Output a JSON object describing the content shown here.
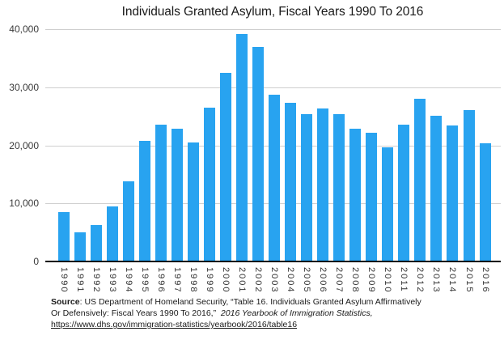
{
  "chart_data": {
    "type": "bar",
    "title": "Individuals Granted Asylum, Fiscal Years 1990 To 2016",
    "categories": [
      "1990",
      "1991",
      "1992",
      "1993",
      "1994",
      "1995",
      "1996",
      "1997",
      "1998",
      "1999",
      "2000",
      "2001",
      "2002",
      "2003",
      "2004",
      "2005",
      "2006",
      "2007",
      "2008",
      "2009",
      "2010",
      "2011",
      "2012",
      "2013",
      "2014",
      "2015",
      "2016"
    ],
    "values": [
      8500,
      5000,
      6300,
      9500,
      13800,
      20700,
      23500,
      22900,
      20500,
      26500,
      32500,
      39200,
      37000,
      28700,
      27300,
      25300,
      26400,
      25400,
      22900,
      22200,
      19700,
      23500,
      28000,
      25100,
      23400,
      26100,
      20400
    ],
    "xlabel": "",
    "ylabel": "",
    "ylim": [
      0,
      40000
    ],
    "yticks": [
      0,
      10000,
      20000,
      30000,
      40000
    ],
    "ytick_labels": [
      "0",
      "10,000",
      "20,000",
      "30,000",
      "40,000"
    ],
    "bar_color": "#28a3f0",
    "grid_color": "#cfcfcf",
    "axis_line_color": "#000000",
    "grid": "horizontal",
    "legend_position": "none"
  },
  "footer": {
    "source_label": "Source",
    "line1_rest": ": US Department of Homeland Security, “Table 16. Individuals Granted Asylum Affirmatively",
    "line2_normal": "Or Defensively: Fiscal Years 1990 To 2016,”  ",
    "line2_italic": "2016 Yearbook of Immigration Statistics,",
    "link_text": "https://www.dhs.gov/immigration-statistics/yearbook/2016/table16"
  }
}
